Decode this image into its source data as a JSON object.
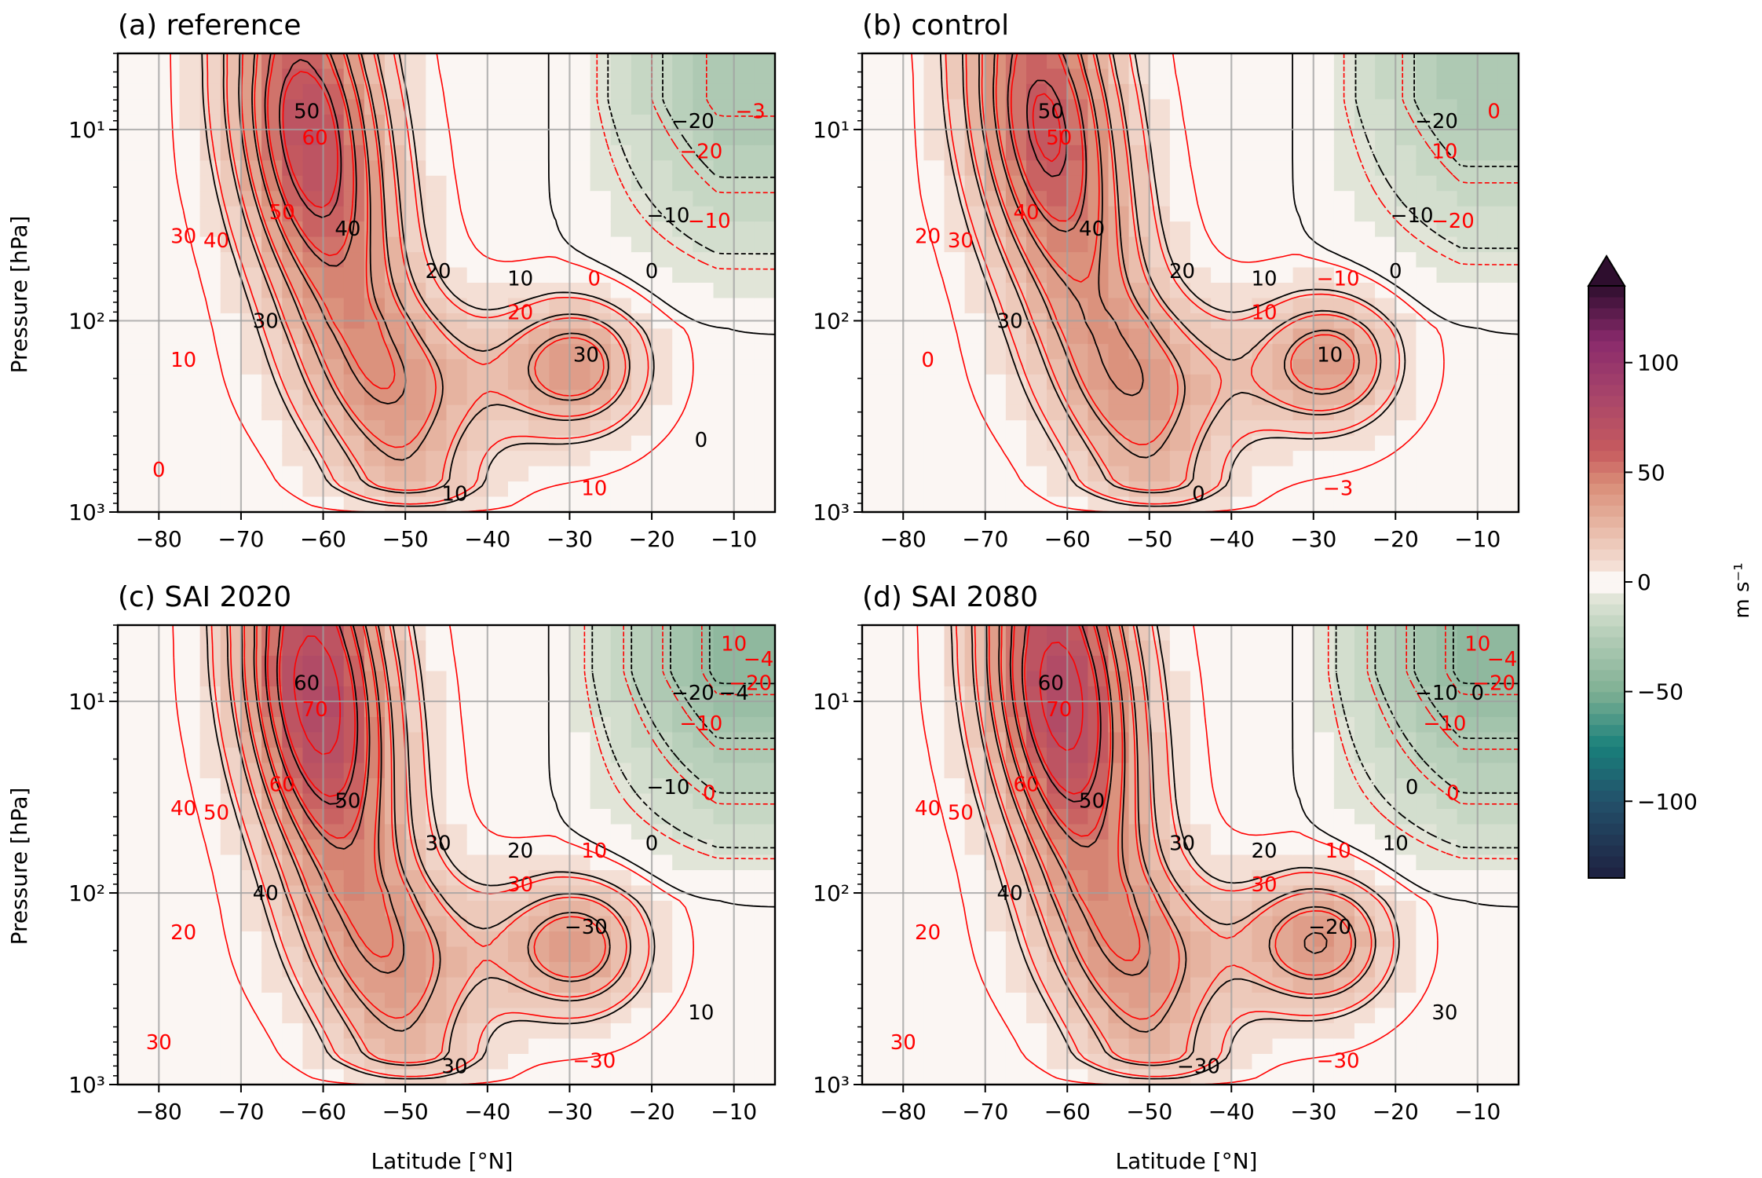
{
  "figure": {
    "colorbar": {
      "label": "m s⁻¹",
      "ticks": [
        "100",
        "50",
        "0",
        "−50",
        "−100"
      ],
      "tick_values": [
        100,
        50,
        0,
        -50,
        -100
      ],
      "range": [
        -135,
        135
      ],
      "extend": "max",
      "colors": {
        "positive_max": "#2e0e2e",
        "positive_high": "#8a2a6c",
        "positive_mid": "#c65a5e",
        "positive_low": "#e8b9a6",
        "zero": "#fbf6f3",
        "negative_low": "#dfe4d6",
        "negative_mid": "#7fb093",
        "negative_high": "#19807b",
        "negative_max": "#1e2040"
      }
    },
    "contour_colors": {
      "black": "#000000",
      "red": "#ff0000",
      "grid": "#a0a0a0"
    }
  },
  "chart_data": [
    {
      "type": "heatmap",
      "title": "(a) reference",
      "xlabel": "",
      "ylabel": "Pressure [hPa]",
      "x_ticks": [
        "−80",
        "−70",
        "−60",
        "−50",
        "−40",
        "−30",
        "−20",
        "−10"
      ],
      "x_tick_values": [
        -80,
        -70,
        -60,
        -50,
        -40,
        -30,
        -20,
        -10
      ],
      "xlim": [
        -85,
        -5
      ],
      "y_ticks": [
        "10¹",
        "10²",
        "10³"
      ],
      "y_tick_values": [
        10,
        100,
        1000
      ],
      "yscale": "log",
      "ylim": [
        1000,
        4
      ],
      "grid": true,
      "fill": {
        "jet_max": 65,
        "jet_lat": -62,
        "jet_level": 8,
        "sub_max": 33,
        "sub_lat": -29,
        "sub_level": 170,
        "trop_max": 30,
        "east_min": -30
      },
      "contour_labels_black": [
        "50",
        "40",
        "30",
        "20",
        "10",
        "0",
        "−10",
        "−20",
        "30",
        "10",
        "0"
      ],
      "contour_labels_red": [
        "60",
        "50",
        "40",
        "30",
        "20",
        "10",
        "0",
        "−10",
        "−20",
        "−3",
        "10",
        "0"
      ]
    },
    {
      "type": "heatmap",
      "title": "(b) control",
      "xlabel": "",
      "ylabel": "",
      "x_ticks": [
        "−80",
        "−70",
        "−60",
        "−50",
        "−40",
        "−30",
        "−20",
        "−10"
      ],
      "x_tick_values": [
        -80,
        -70,
        -60,
        -50,
        -40,
        -30,
        -20,
        -10
      ],
      "xlim": [
        -85,
        -5
      ],
      "y_ticks": [
        "10¹",
        "10²",
        "10³"
      ],
      "y_tick_values": [
        10,
        100,
        1000
      ],
      "yscale": "log",
      "ylim": [
        1000,
        4
      ],
      "grid": true,
      "fill": {
        "jet_max": 60,
        "jet_lat": -63,
        "jet_level": 7,
        "sub_max": 33,
        "sub_lat": -28,
        "sub_level": 160,
        "trop_max": 30,
        "east_min": -28
      },
      "contour_labels_black": [
        "50",
        "40",
        "30",
        "20",
        "10",
        "0",
        "−10",
        "−20",
        "10",
        "0"
      ],
      "contour_labels_red": [
        "50",
        "40",
        "30",
        "20",
        "10",
        "0",
        "−10",
        "−20",
        "10",
        "0",
        "−3"
      ]
    },
    {
      "type": "heatmap",
      "title": "(c) SAI 2020",
      "xlabel": "Latitude [°N]",
      "ylabel": "Pressure [hPa]",
      "x_ticks": [
        "−80",
        "−70",
        "−60",
        "−50",
        "−40",
        "−30",
        "−20",
        "−10"
      ],
      "x_tick_values": [
        -80,
        -70,
        -60,
        -50,
        -40,
        -30,
        -20,
        -10
      ],
      "xlim": [
        -85,
        -5
      ],
      "y_ticks": [
        "10¹",
        "10²",
        "10³"
      ],
      "y_tick_values": [
        10,
        100,
        1000
      ],
      "yscale": "log",
      "ylim": [
        1000,
        4
      ],
      "grid": true,
      "fill": {
        "jet_max": 75,
        "jet_lat": -61,
        "jet_level": 7,
        "sub_max": 34,
        "sub_lat": -29,
        "sub_level": 190,
        "trop_max": 28,
        "east_min": -42
      },
      "contour_labels_black": [
        "60",
        "50",
        "40",
        "30",
        "20",
        "0",
        "−10",
        "−20",
        "−30",
        "30",
        "10",
        "−4"
      ],
      "contour_labels_red": [
        "70",
        "60",
        "50",
        "40",
        "30",
        "20",
        "10",
        "0",
        "−10",
        "−20",
        "−30",
        "30",
        "10",
        "−4"
      ]
    },
    {
      "type": "heatmap",
      "title": "(d) SAI 2080",
      "xlabel": "Latitude [°N]",
      "ylabel": "",
      "x_ticks": [
        "−80",
        "−70",
        "−60",
        "−50",
        "−40",
        "−30",
        "−20",
        "−10"
      ],
      "x_tick_values": [
        -80,
        -70,
        -60,
        -50,
        -40,
        -30,
        -20,
        -10
      ],
      "xlim": [
        -85,
        -5
      ],
      "y_ticks": [
        "10¹",
        "10²",
        "10³"
      ],
      "y_tick_values": [
        10,
        100,
        1000
      ],
      "yscale": "log",
      "ylim": [
        1000,
        4
      ],
      "grid": true,
      "fill": {
        "jet_max": 74,
        "jet_lat": -61,
        "jet_level": 7,
        "sub_max": 35,
        "sub_lat": -29,
        "sub_level": 180,
        "trop_max": 29,
        "east_min": -42
      },
      "contour_labels_black": [
        "60",
        "50",
        "40",
        "30",
        "20",
        "10",
        "0",
        "−10",
        "−20",
        "−30",
        "30",
        "0"
      ],
      "contour_labels_red": [
        "70",
        "60",
        "50",
        "40",
        "30",
        "20",
        "10",
        "0",
        "−10",
        "−20",
        "−30",
        "30",
        "10",
        "−4"
      ]
    }
  ]
}
